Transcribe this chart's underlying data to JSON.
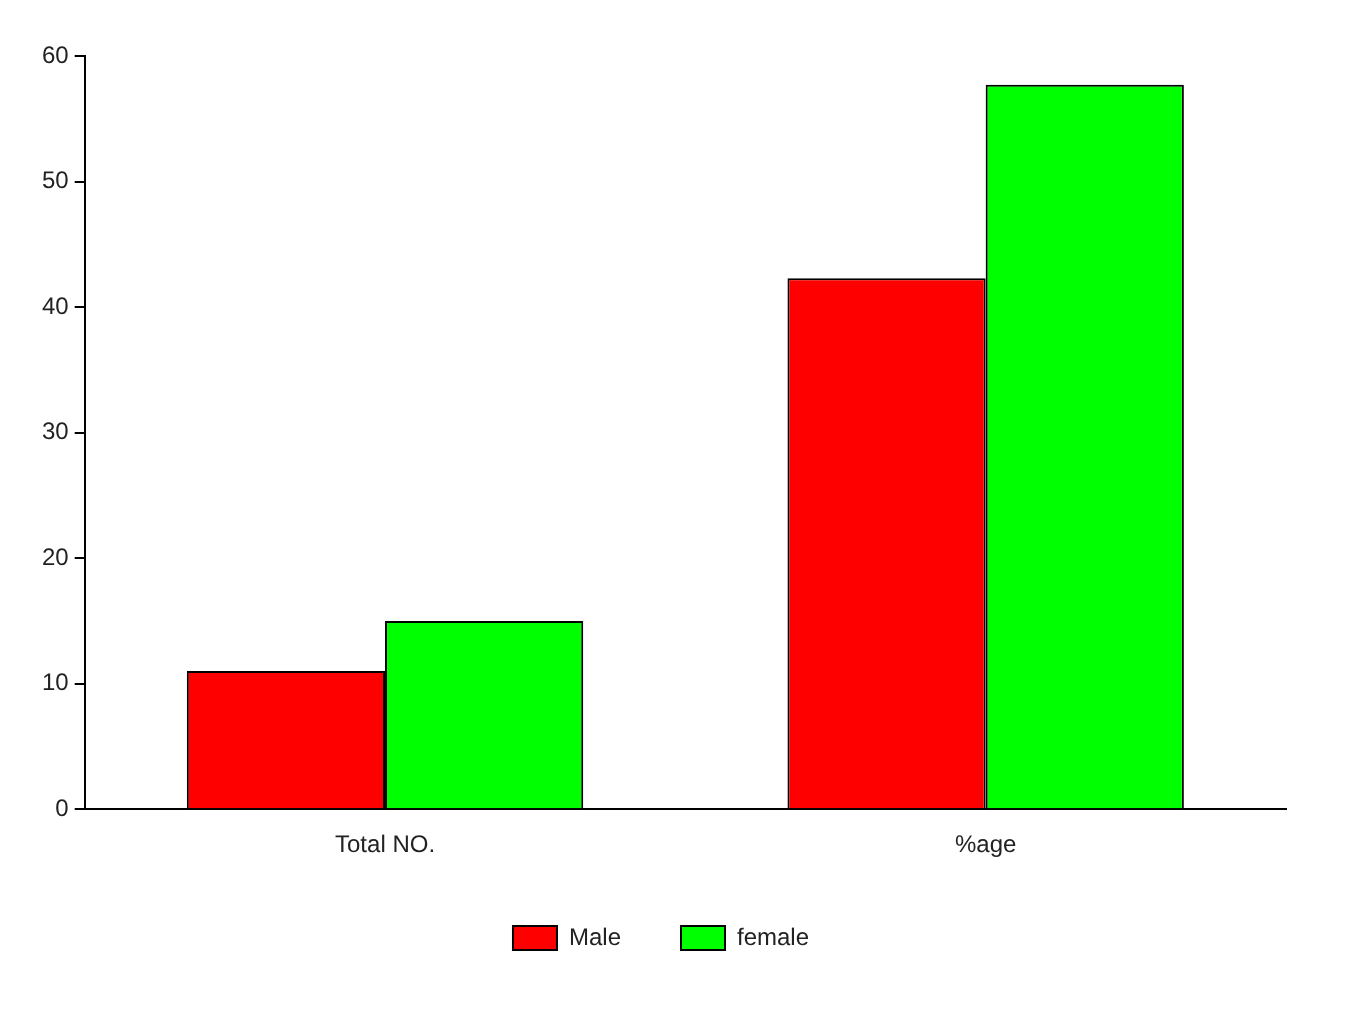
{
  "chart_data": {
    "type": "bar",
    "categories": [
      "Total NO.",
      "%age"
    ],
    "series": [
      {
        "name": "Male",
        "color": "#ff0000",
        "values": [
          11,
          42.3
        ]
      },
      {
        "name": "female",
        "color": "#00ff00",
        "values": [
          15,
          57.7
        ]
      }
    ],
    "ylim": [
      0,
      60
    ],
    "yticks": [
      0,
      10,
      20,
      30,
      40,
      50,
      60
    ],
    "grid": false,
    "legend": "bottom"
  }
}
